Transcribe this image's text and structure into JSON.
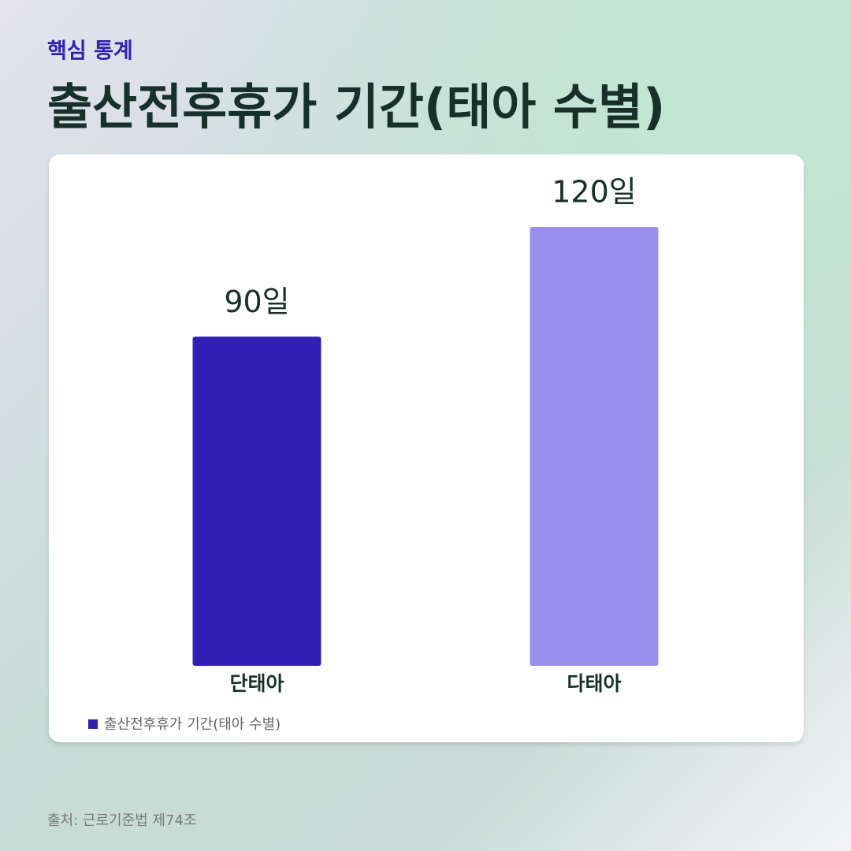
{
  "page": {
    "kicker": "핵심 통계",
    "source": "출처: 근로기준법 제74조"
  },
  "chart_data": {
    "type": "bar",
    "title": "출산전후휴가 기간(태아 수별)",
    "categories": [
      "단태아",
      "다태아"
    ],
    "series": [
      {
        "name": "출산전후휴가 기간(태아 수별)",
        "color": "#3220b5",
        "values": [
          90,
          120
        ],
        "value_labels": [
          "90일",
          "120일"
        ]
      }
    ],
    "bar_colors": [
      "#3220b5",
      "#9b8dec"
    ],
    "legend": "bottom-left"
  }
}
